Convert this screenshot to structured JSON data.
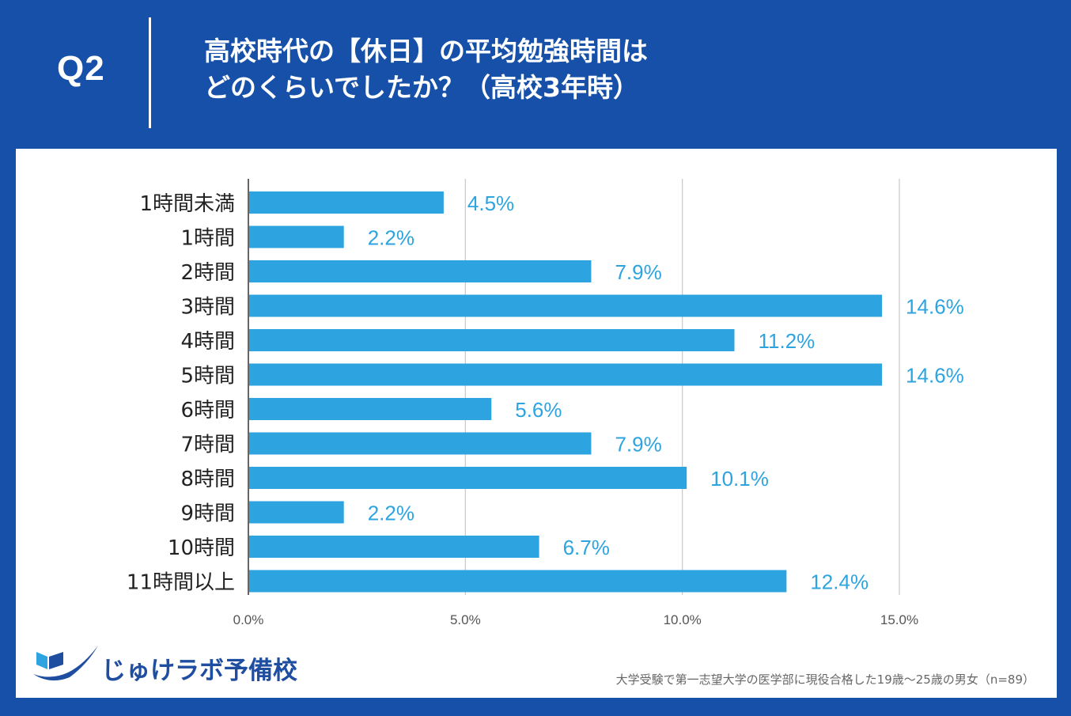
{
  "header": {
    "question_label": "Q2",
    "title_line1": "高校時代の【休日】の平均勉強時間は",
    "title_line2": "どのくらいでしたか？（高校3年時）"
  },
  "colors": {
    "background": "#1650a8",
    "bar": "#2da4df",
    "label_value": "#2da4df"
  },
  "chart_data": {
    "type": "bar",
    "orientation": "horizontal",
    "categories": [
      "1時間未満",
      "1時間",
      "2時間",
      "3時間",
      "4時間",
      "5時間",
      "6時間",
      "7時間",
      "8時間",
      "9時間",
      "10時間",
      "11時間以上"
    ],
    "values": [
      4.5,
      2.2,
      7.9,
      14.6,
      11.2,
      14.6,
      5.6,
      7.9,
      10.1,
      2.2,
      6.7,
      12.4
    ],
    "value_labels": [
      "4.5%",
      "2.2%",
      "7.9%",
      "14.6%",
      "11.2%",
      "14.6%",
      "5.6%",
      "7.9%",
      "10.1%",
      "2.2%",
      "6.7%",
      "12.4%"
    ],
    "xlim": [
      0,
      15
    ],
    "xticks": [
      0,
      5,
      10,
      15
    ],
    "xtick_labels": [
      "0.0%",
      "5.0%",
      "10.0%",
      "15.0%"
    ],
    "grid": true,
    "title": "高校時代の【休日】の平均勉強時間はどのくらいでしたか？（高校3年時）",
    "xlabel": "",
    "ylabel": ""
  },
  "footer": {
    "logo_text": "じゅけラボ予備校",
    "note": "大学受験で第一志望大学の医学部に現役合格した19歳〜25歳の男女（n=89）"
  }
}
